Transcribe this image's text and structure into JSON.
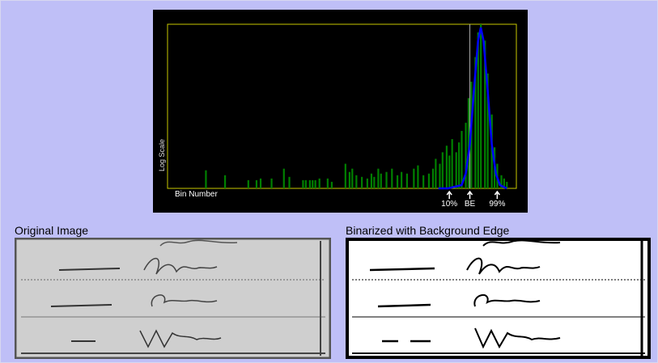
{
  "chart_data": {
    "type": "bar",
    "xlabel": "Bin Number",
    "ylabel": "Log Scale",
    "log_scale": true,
    "xlim": [
      0,
      255
    ],
    "ylim": [
      0,
      100
    ],
    "x": [
      28,
      42,
      59,
      65,
      68,
      76,
      85,
      89,
      99,
      101,
      104,
      106,
      108,
      111,
      117,
      120,
      130,
      133,
      135,
      138,
      142,
      146,
      149,
      151,
      154,
      156,
      160,
      164,
      168,
      171,
      175,
      180,
      183,
      187,
      191,
      194,
      196,
      199,
      201,
      204,
      206,
      208,
      211,
      213,
      215,
      218,
      220,
      222,
      225,
      227,
      229,
      232,
      234,
      237,
      239,
      241,
      244,
      246,
      248
    ],
    "series": [
      {
        "color": "#008000",
        "values": [
          11,
          8,
          5,
          5,
          6,
          6,
          12,
          7,
          5,
          5,
          5,
          5,
          5,
          6,
          6,
          4,
          15,
          10,
          12,
          8,
          7,
          6,
          9,
          7,
          12,
          9,
          10,
          12,
          8,
          10,
          9,
          12,
          14,
          8,
          9,
          12,
          18,
          15,
          22,
          26,
          20,
          30,
          22,
          28,
          35,
          40,
          55,
          65,
          80,
          95,
          100,
          90,
          70,
          45,
          25,
          15,
          8,
          6,
          4
        ]
      },
      {
        "type": "line",
        "color": "#0000ff",
        "x": [
          198,
          205,
          215,
          218,
          221,
          224,
          227,
          229,
          231,
          234,
          237,
          240,
          243,
          248
        ],
        "values": [
          0,
          0,
          2,
          9,
          27,
          60,
          90,
          98,
          90,
          60,
          27,
          9,
          2,
          0
        ]
      }
    ],
    "markers": [
      {
        "label": "10%",
        "x": 206
      },
      {
        "label": "BE",
        "x": 221
      },
      {
        "label": "99%",
        "x": 241
      }
    ],
    "edge_marker": 1
  },
  "panels": [
    {
      "title": "Original Image"
    },
    {
      "title": "Binarized with Background Edge"
    }
  ]
}
